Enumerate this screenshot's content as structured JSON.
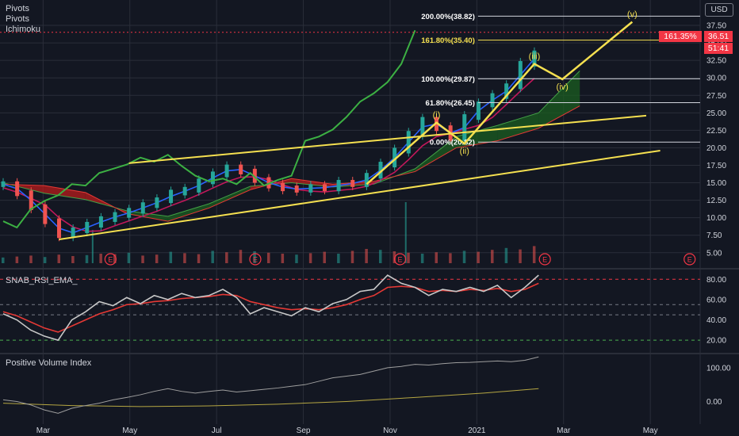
{
  "legend": {
    "top": [
      "Pivots",
      "Pivots",
      "Ichimoku"
    ],
    "rsi": "SNAB_RSI_EMA_",
    "pvi": "Positive Volume Index"
  },
  "currency": "USD",
  "colors": {
    "background": "#131722",
    "grid": "#2a2e39",
    "price_line": "#3cb043",
    "ema_blue": "#2962ff",
    "ema_red": "#c2185b",
    "trend": "#f5e050",
    "fib_line": "#d1d4dc",
    "cloud_green": "#1b5e20",
    "cloud_red": "#b71c1c",
    "rsi_line": "#c8c8c8",
    "rsi_ema": "#e53935",
    "orange": "#ff9800",
    "negative": "#f23645"
  },
  "chart_data": [
    {
      "type": "candlestick",
      "title": "",
      "x_labels": [
        "Mar",
        "May",
        "Jul",
        "Sep",
        "Nov",
        "2021",
        "Mar",
        "May"
      ],
      "y_ticks": [
        "5.00",
        "7.50",
        "10.00",
        "12.50",
        "15.00",
        "17.50",
        "20.00",
        "22.50",
        "25.00",
        "27.50",
        "30.00",
        "32.50",
        "35.00",
        "37.50"
      ],
      "ylim": [
        3.5,
        40
      ],
      "series": [
        {
          "values": [
            [
              0,
              14.8
            ],
            [
              1,
              13.5
            ],
            [
              2,
              11.5
            ],
            [
              3,
              9.5
            ],
            [
              4,
              7.5
            ],
            [
              5,
              8.2
            ],
            [
              6,
              9.0
            ],
            [
              7,
              9.8
            ],
            [
              8,
              10.4
            ],
            [
              9,
              11.0
            ],
            [
              10,
              11.8
            ],
            [
              11,
              12.5
            ],
            [
              12,
              13.6
            ],
            [
              13,
              14.0
            ],
            [
              14,
              15.2
            ],
            [
              15,
              16.2
            ],
            [
              16,
              17.2
            ],
            [
              17,
              16.6
            ],
            [
              18,
              15.4
            ],
            [
              19,
              14.6
            ],
            [
              20,
              14.2
            ],
            [
              21,
              14.0
            ],
            [
              22,
              14.4
            ],
            [
              23,
              14.2
            ],
            [
              24,
              15.0
            ],
            [
              25,
              14.8
            ],
            [
              26,
              16.0
            ],
            [
              27,
              17.6
            ],
            [
              28,
              19.6
            ],
            [
              29,
              22.0
            ],
            [
              30,
              24.0
            ],
            [
              31,
              22.8
            ],
            [
              32,
              21.4
            ],
            [
              33,
              24.4
            ],
            [
              34,
              26.2
            ],
            [
              35,
              27.4
            ],
            [
              36,
              28.8
            ],
            [
              37,
              32.0
            ],
            [
              38,
              33.5
            ]
          ]
        },
        {
          "name": "Ichimoku lagging span",
          "values": [
            [
              0,
              9.5
            ],
            [
              1,
              8.6
            ],
            [
              2,
              11.2
            ],
            [
              3,
              12.4
            ],
            [
              4,
              13.2
            ],
            [
              5,
              14.8
            ],
            [
              6,
              14.6
            ],
            [
              7,
              16.4
            ],
            [
              8,
              17.0
            ],
            [
              9,
              17.6
            ],
            [
              10,
              18.6
            ],
            [
              11,
              18.0
            ],
            [
              12,
              19.0
            ],
            [
              13,
              17.4
            ],
            [
              14,
              16.0
            ],
            [
              15,
              15.2
            ],
            [
              16,
              15.6
            ],
            [
              17,
              14.8
            ],
            [
              18,
              16.4
            ],
            [
              19,
              14.6
            ],
            [
              20,
              15.4
            ],
            [
              21,
              16.0
            ],
            [
              22,
              21.0
            ],
            [
              23,
              21.6
            ],
            [
              24,
              22.6
            ],
            [
              25,
              24.4
            ],
            [
              26,
              26.6
            ],
            [
              27,
              27.8
            ],
            [
              28,
              29.4
            ],
            [
              29,
              32.0
            ],
            [
              30,
              36.8
            ]
          ]
        }
      ],
      "ichimoku_cloud": {
        "x": [
          0,
          3,
          6,
          9,
          12,
          15,
          18,
          21,
          24,
          27,
          30,
          33,
          36,
          39,
          42
        ],
        "span_a": [
          15.0,
          13.5,
          12.6,
          11.0,
          10.2,
          12.0,
          14.5,
          15.0,
          14.4,
          14.8,
          17.0,
          21.6,
          23.2,
          25.0,
          31.0
        ],
        "span_b": [
          14.8,
          14.6,
          13.6,
          10.6,
          9.5,
          11.4,
          14.0,
          15.6,
          14.8,
          15.2,
          16.6,
          20.0,
          21.0,
          22.8,
          26.0
        ]
      },
      "trend_lines": [
        [
          [
            4,
            6.9
          ],
          [
            47,
            19.6
          ]
        ],
        [
          [
            9,
            17.8
          ],
          [
            46,
            24.6
          ]
        ]
      ],
      "elliott_waves": {
        "path": [
          [
            26,
            14.8
          ],
          [
            31,
            23.6
          ],
          [
            33,
            20.6
          ],
          [
            38,
            32.0
          ],
          [
            40,
            29.8
          ],
          [
            45,
            38.0
          ]
        ],
        "labels": [
          "(i)",
          "(ii)",
          "(iii)",
          "(iv)",
          "(v)"
        ]
      },
      "fibonacci": [
        {
          "label": "200.00%(38.82)",
          "value": 38.82
        },
        {
          "label": "161.80%(35.40)",
          "value": 35.4
        },
        {
          "label": "100.00%(29.87)",
          "value": 29.87
        },
        {
          "label": "61.80%(26.45)",
          "value": 26.45
        },
        {
          "label": "0.00%(20.82)",
          "value": 20.82
        }
      ],
      "current_price": {
        "change": "161.35%",
        "price": "36.51",
        "countdown": "51:41",
        "value": 36.51
      },
      "earnings_markers": [
        "E",
        "E",
        "E",
        "E",
        "E"
      ],
      "volume": [
        1.2,
        1.4,
        1.6,
        1.3,
        1.8,
        1.5,
        1.7,
        2.0,
        1.9,
        2.2,
        1.6,
        1.8,
        2.4,
        2.1,
        1.9,
        2.6,
        2.3,
        2.8,
        2.5,
        2.2,
        2.0,
        1.8,
        2.1,
        2.4,
        2.0,
        2.6,
        3.0,
        2.8,
        2.5,
        2.2,
        2.0,
        2.3,
        2.1,
        2.6,
        2.4,
        2.8,
        3.2,
        2.9,
        3.6
      ]
    },
    {
      "type": "line",
      "title": "SNAB_RSI_EMA_",
      "y_ticks": [
        "20.00",
        "40.00",
        "60.00",
        "80.00"
      ],
      "ylim": [
        10,
        88
      ],
      "levels": [
        80,
        55,
        45,
        20
      ],
      "series": [
        {
          "values": [
            [
              0,
              46
            ],
            [
              1,
              40
            ],
            [
              2,
              30
            ],
            [
              3,
              24
            ],
            [
              4,
              20
            ],
            [
              5,
              40
            ],
            [
              6,
              48
            ],
            [
              7,
              58
            ],
            [
              8,
              54
            ],
            [
              9,
              62
            ],
            [
              10,
              56
            ],
            [
              11,
              64
            ],
            [
              12,
              60
            ],
            [
              13,
              66
            ],
            [
              14,
              62
            ],
            [
              15,
              64
            ],
            [
              16,
              70
            ],
            [
              17,
              62
            ],
            [
              18,
              46
            ],
            [
              19,
              52
            ],
            [
              20,
              48
            ],
            [
              21,
              44
            ],
            [
              22,
              52
            ],
            [
              23,
              48
            ],
            [
              24,
              56
            ],
            [
              25,
              60
            ],
            [
              26,
              68
            ],
            [
              27,
              70
            ],
            [
              28,
              84
            ],
            [
              29,
              76
            ],
            [
              30,
              72
            ],
            [
              31,
              64
            ],
            [
              32,
              70
            ],
            [
              33,
              68
            ],
            [
              34,
              72
            ],
            [
              35,
              68
            ],
            [
              36,
              74
            ],
            [
              37,
              62
            ],
            [
              38,
              72
            ],
            [
              39,
              84
            ]
          ]
        },
        {
          "name": "EMA",
          "values": [
            [
              0,
              48
            ],
            [
              1,
              44
            ],
            [
              2,
              38
            ],
            [
              3,
              32
            ],
            [
              4,
              28
            ],
            [
              5,
              34
            ],
            [
              6,
              40
            ],
            [
              7,
              46
            ],
            [
              8,
              50
            ],
            [
              9,
              55
            ],
            [
              10,
              56
            ],
            [
              11,
              58
            ],
            [
              12,
              59
            ],
            [
              13,
              61
            ],
            [
              14,
              62
            ],
            [
              15,
              63
            ],
            [
              16,
              65
            ],
            [
              17,
              64
            ],
            [
              18,
              58
            ],
            [
              19,
              55
            ],
            [
              20,
              52
            ],
            [
              21,
              50
            ],
            [
              22,
              51
            ],
            [
              23,
              50
            ],
            [
              24,
              52
            ],
            [
              25,
              55
            ],
            [
              26,
              60
            ],
            [
              27,
              64
            ],
            [
              28,
              72
            ],
            [
              29,
              73
            ],
            [
              30,
              72
            ],
            [
              31,
              68
            ],
            [
              32,
              69
            ],
            [
              33,
              68
            ],
            [
              34,
              70
            ],
            [
              35,
              69
            ],
            [
              36,
              71
            ],
            [
              37,
              68
            ],
            [
              38,
              70
            ],
            [
              39,
              76
            ]
          ]
        }
      ]
    },
    {
      "type": "line",
      "title": "Positive Volume Index",
      "y_ticks": [
        "0.00",
        "100.00"
      ],
      "ylim": [
        -60,
        135
      ],
      "series": [
        {
          "values": [
            [
              0,
              5
            ],
            [
              1,
              0
            ],
            [
              2,
              -10
            ],
            [
              3,
              -25
            ],
            [
              4,
              -35
            ],
            [
              5,
              -20
            ],
            [
              6,
              -12
            ],
            [
              7,
              -5
            ],
            [
              8,
              5
            ],
            [
              9,
              12
            ],
            [
              10,
              20
            ],
            [
              11,
              30
            ],
            [
              12,
              38
            ],
            [
              13,
              30
            ],
            [
              14,
              25
            ],
            [
              15,
              30
            ],
            [
              16,
              34
            ],
            [
              17,
              28
            ],
            [
              18,
              32
            ],
            [
              19,
              36
            ],
            [
              20,
              40
            ],
            [
              21,
              45
            ],
            [
              22,
              50
            ],
            [
              23,
              60
            ],
            [
              24,
              70
            ],
            [
              25,
              75
            ],
            [
              26,
              80
            ],
            [
              27,
              90
            ],
            [
              28,
              100
            ],
            [
              29,
              104
            ],
            [
              30,
              110
            ],
            [
              31,
              108
            ],
            [
              32,
              112
            ],
            [
              33,
              115
            ],
            [
              34,
              116
            ],
            [
              35,
              118
            ],
            [
              36,
              120
            ],
            [
              37,
              118
            ],
            [
              38,
              122
            ],
            [
              39,
              132
            ]
          ]
        },
        {
          "name": "EMA",
          "values": [
            [
              0,
              -5
            ],
            [
              5,
              -12
            ],
            [
              10,
              -15
            ],
            [
              15,
              -13
            ],
            [
              20,
              -8
            ],
            [
              25,
              0
            ],
            [
              30,
              12
            ],
            [
              35,
              25
            ],
            [
              39,
              38
            ]
          ]
        }
      ]
    }
  ]
}
